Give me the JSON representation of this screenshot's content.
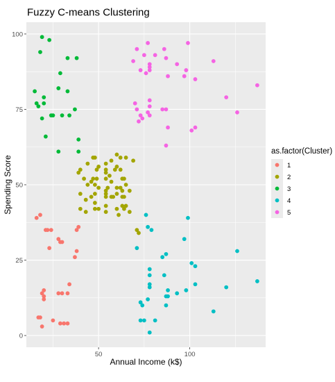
{
  "chart_data": {
    "type": "scatter",
    "title": "Fuzzy C-means Clustering",
    "xlabel": "Annual Income (k$)",
    "ylabel": "Spending Score",
    "xlim": [
      10.4,
      141.6
    ],
    "ylim": [
      -3.9,
      103.9
    ],
    "x_ticks": [
      50,
      100
    ],
    "y_ticks": [
      0,
      25,
      50,
      75,
      100
    ],
    "grid": true,
    "panel_background": "#ebebeb",
    "legend": {
      "title": "as.factor(Cluster)",
      "placement": "right",
      "entries": [
        "1",
        "2",
        "3",
        "4",
        "5"
      ]
    },
    "series": [
      {
        "name": "1",
        "color": "#F8766D",
        "points": [
          [
            16,
            39
          ],
          [
            17,
            6
          ],
          [
            18,
            6
          ],
          [
            18,
            40
          ],
          [
            19,
            3
          ],
          [
            19,
            14
          ],
          [
            20,
            13
          ],
          [
            20,
            15
          ],
          [
            20,
            12
          ],
          [
            21,
            35
          ],
          [
            22,
            35
          ],
          [
            23,
            29
          ],
          [
            24,
            35
          ],
          [
            25,
            5
          ],
          [
            28,
            14
          ],
          [
            28,
            32
          ],
          [
            29,
            31
          ],
          [
            29,
            4
          ],
          [
            30,
            14
          ],
          [
            30,
            31
          ],
          [
            31,
            4
          ],
          [
            33,
            4
          ],
          [
            33,
            14
          ],
          [
            34,
            17
          ],
          [
            37,
            26
          ],
          [
            38,
            28
          ],
          [
            38,
            35
          ],
          [
            39,
            36
          ]
        ]
      },
      {
        "name": "2",
        "color": "#A3A500",
        "points": [
          [
            39,
            54
          ],
          [
            40,
            47
          ],
          [
            40,
            42
          ],
          [
            40,
            55
          ],
          [
            42,
            52
          ],
          [
            43,
            45
          ],
          [
            43,
            41
          ],
          [
            44,
            50
          ],
          [
            44,
            57
          ],
          [
            46,
            51
          ],
          [
            46,
            46
          ],
          [
            47,
            52
          ],
          [
            47,
            59
          ],
          [
            48,
            50
          ],
          [
            48,
            47
          ],
          [
            48,
            44
          ],
          [
            48,
            42
          ],
          [
            48,
            59
          ],
          [
            49,
            55
          ],
          [
            49,
            52
          ],
          [
            50,
            49
          ],
          [
            50,
            56
          ],
          [
            50,
            42
          ],
          [
            54,
            41
          ],
          [
            54,
            47
          ],
          [
            54,
            55
          ],
          [
            54,
            57
          ],
          [
            54,
            52
          ],
          [
            54,
            48
          ],
          [
            54,
            54
          ],
          [
            54,
            46
          ],
          [
            54,
            43
          ],
          [
            55,
            49
          ],
          [
            56,
            53
          ],
          [
            57,
            51
          ],
          [
            57,
            46
          ],
          [
            57,
            58
          ],
          [
            58,
            46
          ],
          [
            59,
            55
          ],
          [
            60,
            49
          ],
          [
            60,
            47
          ],
          [
            60,
            56
          ],
          [
            60,
            42
          ],
          [
            60,
            60
          ],
          [
            61,
            40
          ],
          [
            62,
            49
          ],
          [
            62,
            55
          ],
          [
            62,
            59
          ],
          [
            63,
            52
          ],
          [
            63,
            46
          ],
          [
            63,
            43
          ],
          [
            63,
            48
          ],
          [
            64,
            42
          ],
          [
            64,
            46
          ],
          [
            64,
            52
          ],
          [
            65,
            43
          ],
          [
            65,
            50
          ],
          [
            65,
            59
          ],
          [
            67,
            41
          ],
          [
            67,
            48
          ],
          [
            69,
            58
          ],
          [
            71,
            35
          ],
          [
            72,
            34
          ]
        ]
      },
      {
        "name": "3",
        "color": "#00BA38",
        "points": [
          [
            15,
            81
          ],
          [
            16,
            77
          ],
          [
            17,
            76
          ],
          [
            18,
            94
          ],
          [
            19,
            99
          ],
          [
            19,
            72
          ],
          [
            20,
            77
          ],
          [
            20,
            79
          ],
          [
            21,
            66
          ],
          [
            23,
            98
          ],
          [
            24,
            73
          ],
          [
            25,
            73
          ],
          [
            28,
            82
          ],
          [
            28,
            61
          ],
          [
            29,
            87
          ],
          [
            30,
            73
          ],
          [
            33,
            81
          ],
          [
            33,
            92
          ],
          [
            34,
            73
          ],
          [
            37,
            75
          ],
          [
            38,
            92
          ],
          [
            39,
            61
          ],
          [
            39,
            65
          ]
        ]
      },
      {
        "name": "4",
        "color": "#00BFC4",
        "points": [
          [
            71,
            29
          ],
          [
            73,
            11
          ],
          [
            73,
            5
          ],
          [
            74,
            10
          ],
          [
            75,
            5
          ],
          [
            76,
            40
          ],
          [
            77,
            12
          ],
          [
            77,
            36
          ],
          [
            78,
            22
          ],
          [
            78,
            17
          ],
          [
            78,
            20
          ],
          [
            78,
            16
          ],
          [
            78,
            1
          ],
          [
            79,
            35
          ],
          [
            81,
            5
          ],
          [
            85,
            26
          ],
          [
            86,
            20
          ],
          [
            87,
            27
          ],
          [
            87,
            13
          ],
          [
            87,
            10
          ],
          [
            88,
            15
          ],
          [
            88,
            13
          ],
          [
            93,
            14
          ],
          [
            97,
            32
          ],
          [
            98,
            15
          ],
          [
            99,
            39
          ],
          [
            101,
            24
          ],
          [
            103,
            17
          ],
          [
            103,
            23
          ],
          [
            113,
            8
          ],
          [
            120,
            16
          ],
          [
            126,
            28
          ],
          [
            137,
            18
          ]
        ]
      },
      {
        "name": "5",
        "color": "#F564E3",
        "points": [
          [
            69,
            91
          ],
          [
            70,
            77
          ],
          [
            71,
            95
          ],
          [
            71,
            75
          ],
          [
            72,
            71
          ],
          [
            73,
            88
          ],
          [
            73,
            73
          ],
          [
            74,
            72
          ],
          [
            75,
            93
          ],
          [
            76,
            87
          ],
          [
            77,
            97
          ],
          [
            77,
            74
          ],
          [
            78,
            90
          ],
          [
            78,
            88
          ],
          [
            78,
            76
          ],
          [
            78,
            89
          ],
          [
            78,
            78
          ],
          [
            78,
            73
          ],
          [
            81,
            93
          ],
          [
            85,
            75
          ],
          [
            86,
            95
          ],
          [
            87,
            63
          ],
          [
            87,
            75
          ],
          [
            87,
            92
          ],
          [
            88,
            86
          ],
          [
            88,
            69
          ],
          [
            93,
            90
          ],
          [
            97,
            86
          ],
          [
            98,
            88
          ],
          [
            99,
            97
          ],
          [
            101,
            68
          ],
          [
            103,
            69
          ],
          [
            103,
            85
          ],
          [
            113,
            91
          ],
          [
            120,
            79
          ],
          [
            126,
            74
          ],
          [
            137,
            83
          ]
        ]
      }
    ]
  }
}
